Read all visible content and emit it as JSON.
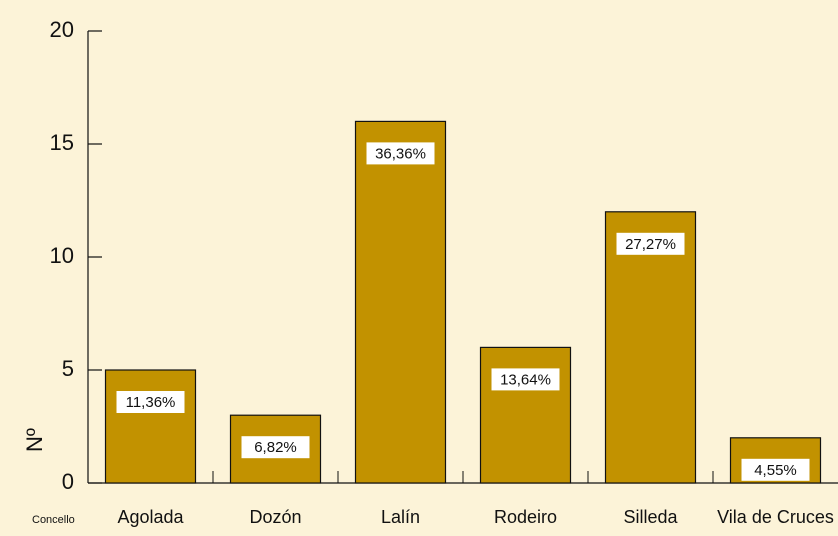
{
  "chart_data": {
    "type": "bar",
    "categories": [
      "Agolada",
      "Dozón",
      "Lalín",
      "Rodeiro",
      "Silleda",
      "Vila de Cruces"
    ],
    "values": [
      5,
      3,
      16,
      6,
      12,
      2
    ],
    "percent": {
      "values": [
        11.36,
        6.82,
        36.36,
        13.64,
        27.27,
        4.55
      ],
      "labels": [
        "11,36%",
        "6,82%",
        "36,36%",
        "13,64%",
        "27,27%",
        "4,55%"
      ]
    },
    "color": "#c29200",
    "ylim": [
      0,
      20
    ],
    "yticks": [
      0,
      5,
      10,
      15,
      20
    ],
    "ylabel": "Nº",
    "xlabel": "Concello"
  }
}
